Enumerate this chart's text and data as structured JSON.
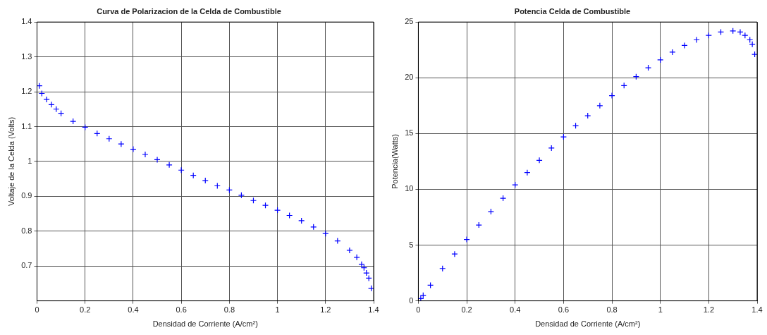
{
  "chart_data": [
    {
      "type": "scatter",
      "title": "Curva de Polarizacion de la Celda de Combustible",
      "xlabel": "Densidad de Corriente (A/cm²)",
      "ylabel": "Voltaje de la Celda (Volts)",
      "xlim": [
        0,
        1.4
      ],
      "ylim": [
        0.6,
        1.4
      ],
      "xticks": [
        0,
        0.2,
        0.4,
        0.6,
        0.8,
        1,
        1.2,
        1.4
      ],
      "yticks": [
        0.7,
        0.8,
        0.9,
        1,
        1.1,
        1.2,
        1.3,
        1.4
      ],
      "grid": true,
      "marker": "cross",
      "series": [
        {
          "color": "#0000ff",
          "x": [
            0.01,
            0.02,
            0.04,
            0.06,
            0.08,
            0.1,
            0.15,
            0.2,
            0.25,
            0.3,
            0.35,
            0.4,
            0.45,
            0.5,
            0.55,
            0.6,
            0.65,
            0.7,
            0.75,
            0.8,
            0.85,
            0.9,
            0.95,
            1.0,
            1.05,
            1.1,
            1.15,
            1.2,
            1.25,
            1.3,
            1.33,
            1.35,
            1.36,
            1.37,
            1.38,
            1.39
          ],
          "values": [
            1.217,
            1.195,
            1.178,
            1.163,
            1.15,
            1.138,
            1.115,
            1.098,
            1.08,
            1.065,
            1.05,
            1.035,
            1.02,
            1.005,
            0.99,
            0.975,
            0.96,
            0.945,
            0.93,
            0.918,
            0.903,
            0.888,
            0.874,
            0.86,
            0.845,
            0.83,
            0.812,
            0.793,
            0.772,
            0.745,
            0.725,
            0.705,
            0.695,
            0.68,
            0.665,
            0.636
          ]
        }
      ]
    },
    {
      "type": "scatter",
      "title": "Potencia Celda de Combustible",
      "xlabel": "Densidad de Corriente (A/cm²)",
      "ylabel": "Potencia(Watts)",
      "xlim": [
        0,
        1.4
      ],
      "ylim": [
        0,
        25
      ],
      "xticks": [
        0,
        0.2,
        0.4,
        0.6,
        0.8,
        1,
        1.2,
        1.4
      ],
      "yticks": [
        0,
        5,
        10,
        15,
        20,
        25
      ],
      "grid": true,
      "marker": "cross",
      "series": [
        {
          "color": "#0000ff",
          "x": [
            0.01,
            0.02,
            0.05,
            0.1,
            0.15,
            0.2,
            0.25,
            0.3,
            0.35,
            0.4,
            0.45,
            0.5,
            0.55,
            0.6,
            0.65,
            0.7,
            0.75,
            0.8,
            0.85,
            0.9,
            0.95,
            1.0,
            1.05,
            1.1,
            1.15,
            1.2,
            1.25,
            1.3,
            1.33,
            1.35,
            1.37,
            1.38,
            1.39
          ],
          "values": [
            0.2,
            0.5,
            1.4,
            2.9,
            4.2,
            5.5,
            6.8,
            8.0,
            9.2,
            10.4,
            11.5,
            12.6,
            13.7,
            14.7,
            15.7,
            16.6,
            17.5,
            18.4,
            19.3,
            20.1,
            20.9,
            21.6,
            22.3,
            22.9,
            23.4,
            23.8,
            24.1,
            24.2,
            24.1,
            23.8,
            23.4,
            23.0,
            22.1
          ]
        }
      ]
    }
  ]
}
